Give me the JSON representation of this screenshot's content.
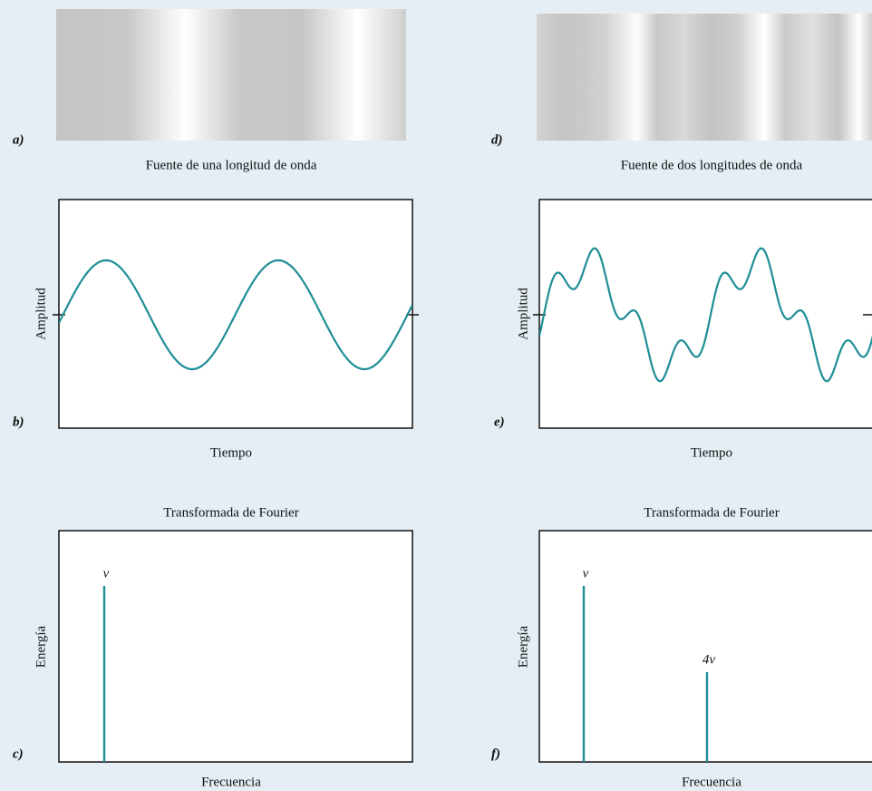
{
  "panels": [
    {
      "label": "a)",
      "caption": "Fuente de una longitud de onda"
    },
    {
      "label": "b)",
      "y_label": "Amplitud",
      "x_label": "Tiempo"
    },
    {
      "label": "c)",
      "title": "Transformada de Fourier",
      "y_label": "Energía",
      "x_label": "Frecuencia",
      "peaks": [
        "ν"
      ]
    },
    {
      "label": "d)",
      "caption": "Fuente de dos longitudes de onda"
    },
    {
      "label": "e)",
      "y_label": "Amplitud",
      "x_label": "Tiempo"
    },
    {
      "label": "f)",
      "title": "Transformada de Fourier",
      "y_label": "Energía",
      "x_label": "Frecuencia",
      "peaks": [
        "ν",
        "4ν"
      ]
    }
  ]
}
